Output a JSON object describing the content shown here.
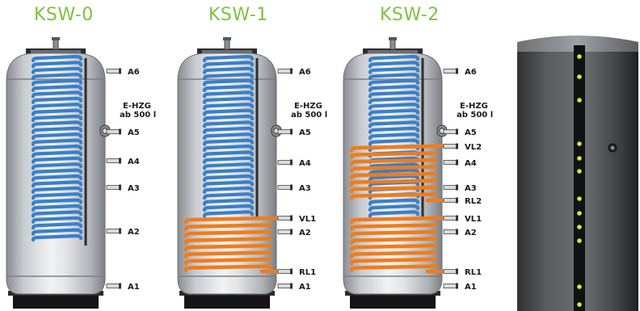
{
  "titles": [
    "KSW-0",
    "KSW-1",
    "KSW-2"
  ],
  "side_note": [
    "E-HZG",
    "ab 500 l"
  ],
  "tanks": [
    {
      "variant": "KSW-0",
      "ports": [
        "A6",
        "A5",
        "A4",
        "A3",
        "A2",
        "A1"
      ]
    },
    {
      "variant": "KSW-1",
      "ports": [
        "A6",
        "A5",
        "A4",
        "A3",
        "VL1",
        "A2",
        "RL1",
        "A1"
      ]
    },
    {
      "variant": "KSW-2",
      "ports": [
        "A6",
        "A5",
        "VL2",
        "A4",
        "A3",
        "RL2",
        "VL1",
        "A2",
        "RL1",
        "A1"
      ]
    }
  ],
  "colors": {
    "title_green": "#7dc242",
    "coil_blue": "#3a7fc8",
    "coil_orange": "#f07c1a",
    "jacket_dark": "#4a4d50",
    "stripe": "#111111",
    "dot_yellow": "#d7e83a"
  }
}
